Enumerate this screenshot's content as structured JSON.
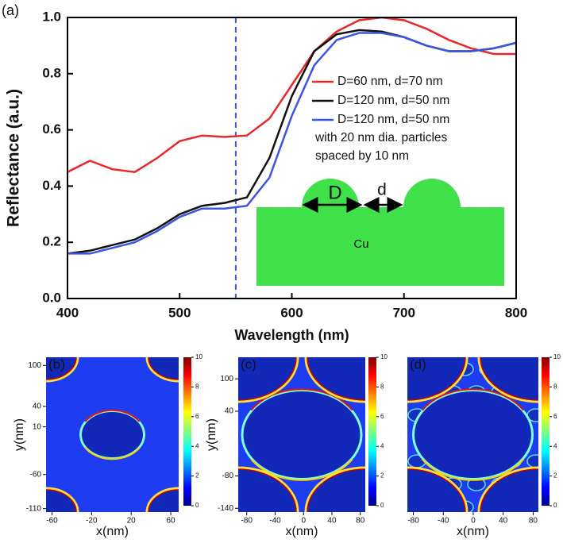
{
  "chart_data": [
    {
      "type": "line",
      "panel_label": "(a)",
      "xlabel": "Wavelength (nm)",
      "ylabel": "Reflectance (a.u.)",
      "x": [
        400,
        420,
        440,
        460,
        480,
        500,
        520,
        540,
        560,
        580,
        600,
        620,
        640,
        660,
        680,
        700,
        720,
        740,
        760,
        780,
        800
      ],
      "series": [
        {
          "name": "D=60 nm, d=70 nm",
          "color": "#e8282b",
          "values": [
            0.45,
            0.49,
            0.46,
            0.45,
            0.5,
            0.56,
            0.58,
            0.575,
            0.58,
            0.64,
            0.76,
            0.88,
            0.95,
            0.99,
            1.0,
            0.99,
            0.96,
            0.92,
            0.89,
            0.87,
            0.87
          ]
        },
        {
          "name": "D=120 nm, d=50 nm",
          "color": "#111111",
          "values": [
            0.16,
            0.17,
            0.19,
            0.21,
            0.25,
            0.3,
            0.33,
            0.34,
            0.36,
            0.5,
            0.72,
            0.88,
            0.94,
            0.955,
            0.95,
            0.93,
            0.9,
            0.88,
            0.88,
            0.89,
            0.91
          ]
        },
        {
          "name": "D=120 nm, d=50 nm",
          "color": "#3b55e0",
          "values": [
            0.16,
            0.16,
            0.18,
            0.2,
            0.24,
            0.29,
            0.32,
            0.32,
            0.33,
            0.43,
            0.65,
            0.83,
            0.92,
            0.945,
            0.945,
            0.93,
            0.9,
            0.88,
            0.88,
            0.89,
            0.91
          ]
        }
      ],
      "annotations": [
        "with 20 nm dia. particles",
        "spaced by 10 nm"
      ],
      "inset_labels": [
        "D",
        "d",
        "Cu"
      ],
      "vline": 550,
      "vline_color": "#3b55e0",
      "xlim": [
        400,
        800
      ],
      "xticks": [
        400,
        500,
        600,
        700,
        800
      ],
      "ylim": [
        0,
        1
      ],
      "yticks": [
        {
          "value": 0,
          "label": "0.0"
        },
        0.2,
        0.4,
        0.6,
        0.8,
        {
          "value": 1,
          "label": "1.0"
        }
      ]
    },
    {
      "type": "field-map",
      "panel_label": "(b)",
      "xlabel": "x(nm)",
      "ylabel": "y(nm)",
      "xlim": [
        -66,
        68
      ],
      "xticks": [
        -60,
        -20,
        20,
        60
      ],
      "ylim": [
        -115,
        112
      ],
      "yticks": [
        100,
        40,
        10,
        -60,
        -110
      ],
      "clim": [
        0,
        10
      ],
      "cticks": [
        0,
        2,
        4,
        6,
        8,
        10
      ]
    },
    {
      "type": "field-map",
      "panel_label": "(c)",
      "xlabel": "x(nm)",
      "ylabel": "y(nm)",
      "xlim": [
        -92,
        87
      ],
      "xticks": [
        -80,
        -40,
        0,
        40,
        80
      ],
      "ylim": [
        -147,
        140
      ],
      "yticks": [
        100,
        40,
        -80,
        -140
      ],
      "clim": [
        0,
        10
      ],
      "cticks": [
        0,
        2,
        4,
        6,
        8,
        10
      ]
    },
    {
      "type": "field-map",
      "panel_label": "(d)",
      "xlabel": "x(nm)",
      "xlim": [
        -88,
        87
      ],
      "xticks": [
        -80,
        -40,
        0,
        40,
        80
      ],
      "clim": [
        0,
        10
      ],
      "cticks": [
        0,
        2,
        4,
        6,
        8,
        10
      ]
    }
  ]
}
